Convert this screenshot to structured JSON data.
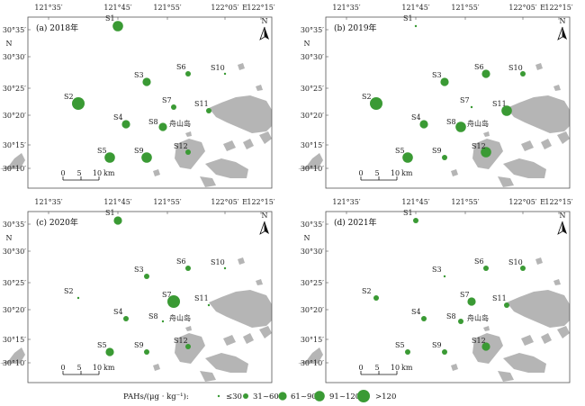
{
  "colors": {
    "point": "#3a9a34",
    "land": "#b5b5b5",
    "frame": "#555555"
  },
  "axes": {
    "lon_labels": [
      "121°35′",
      "121°45′",
      "121°55′",
      "122°05′",
      "122°15′"
    ],
    "lon_suffix": "E",
    "lat_labels": [
      "30°35′",
      "30°30′",
      "30°25′",
      "30°20′",
      "30°15′",
      "30°10′"
    ],
    "lat_suffix": "N"
  },
  "north_arrow": {
    "label": "N",
    "icon": "north-arrow-icon"
  },
  "scale_bar": {
    "ticks": [
      "0",
      "5",
      "10"
    ],
    "unit": "km"
  },
  "place_name": "舟山岛",
  "panels": [
    {
      "title": "(a) 2018年",
      "stations": [
        {
          "id": "S1",
          "size": 3
        },
        {
          "id": "S2",
          "size": 4
        },
        {
          "id": "S3",
          "size": 2
        },
        {
          "id": "S4",
          "size": 2
        },
        {
          "id": "S5",
          "size": 3
        },
        {
          "id": "S6",
          "size": 1
        },
        {
          "id": "S7",
          "size": 1
        },
        {
          "id": "S8",
          "size": 2
        },
        {
          "id": "S9",
          "size": 3
        },
        {
          "id": "S10",
          "size": 0
        },
        {
          "id": "S11",
          "size": 1
        },
        {
          "id": "S12",
          "size": 1
        }
      ]
    },
    {
      "title": "(b) 2019年",
      "stations": [
        {
          "id": "S1",
          "size": 0
        },
        {
          "id": "S2",
          "size": 4
        },
        {
          "id": "S3",
          "size": 2
        },
        {
          "id": "S4",
          "size": 2
        },
        {
          "id": "S5",
          "size": 3
        },
        {
          "id": "S6",
          "size": 2
        },
        {
          "id": "S7",
          "size": 0
        },
        {
          "id": "S8",
          "size": 3
        },
        {
          "id": "S9",
          "size": 1
        },
        {
          "id": "S10",
          "size": 1
        },
        {
          "id": "S11",
          "size": 3
        },
        {
          "id": "S12",
          "size": 3
        }
      ]
    },
    {
      "title": "(c) 2020年",
      "stations": [
        {
          "id": "S1",
          "size": 2
        },
        {
          "id": "S2",
          "size": 0
        },
        {
          "id": "S3",
          "size": 1
        },
        {
          "id": "S4",
          "size": 1
        },
        {
          "id": "S5",
          "size": 2
        },
        {
          "id": "S6",
          "size": 1
        },
        {
          "id": "S7",
          "size": 4
        },
        {
          "id": "S8",
          "size": 0
        },
        {
          "id": "S9",
          "size": 1
        },
        {
          "id": "S10",
          "size": 0
        },
        {
          "id": "S11",
          "size": 0
        },
        {
          "id": "S12",
          "size": 1
        }
      ]
    },
    {
      "title": "(d) 2021年",
      "stations": [
        {
          "id": "S1",
          "size": 1
        },
        {
          "id": "S2",
          "size": 1
        },
        {
          "id": "S3",
          "size": 0
        },
        {
          "id": "S4",
          "size": 1
        },
        {
          "id": "S5",
          "size": 1
        },
        {
          "id": "S6",
          "size": 1
        },
        {
          "id": "S7",
          "size": 2
        },
        {
          "id": "S8",
          "size": 1
        },
        {
          "id": "S9",
          "size": 1
        },
        {
          "id": "S10",
          "size": 1
        },
        {
          "id": "S11",
          "size": 1
        },
        {
          "id": "S12",
          "size": 2
        }
      ]
    }
  ],
  "legend": {
    "label": "PAHs/(μg · kg⁻¹):",
    "classes": [
      "≤30",
      "31~60",
      "61~90",
      "91~120",
      ">120"
    ]
  }
}
